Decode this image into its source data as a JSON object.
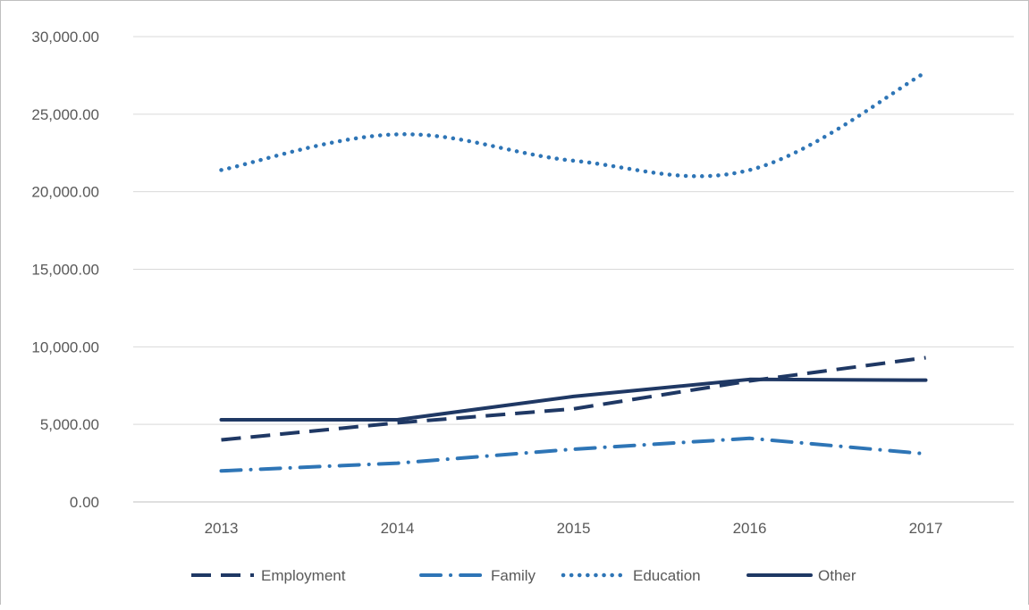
{
  "chart_data": {
    "type": "line",
    "title": "",
    "xlabel": "",
    "ylabel": "",
    "categories": [
      "2013",
      "2014",
      "2015",
      "2016",
      "2017"
    ],
    "ylim": [
      0,
      30000
    ],
    "yticks": [
      0,
      5000,
      10000,
      15000,
      20000,
      25000,
      30000
    ],
    "ytick_labels": [
      "0.00",
      "5,000.00",
      "10,000.00",
      "15,000.00",
      "20,000.00",
      "25,000.00",
      "30,000.00"
    ],
    "grid": true,
    "legend_position": "bottom",
    "series": [
      {
        "name": "Employment",
        "values": [
          4000,
          5100,
          6000,
          7800,
          9300
        ],
        "color": "#1f3864",
        "style": "dashed"
      },
      {
        "name": "Family",
        "values": [
          2000,
          2500,
          3400,
          4100,
          3100
        ],
        "color": "#2e75b6",
        "style": "dash-dot"
      },
      {
        "name": "Education",
        "values": [
          21400,
          23700,
          22000,
          21400,
          27700
        ],
        "color": "#2e75b6",
        "style": "dotted"
      },
      {
        "name": "Other",
        "values": [
          5300,
          5300,
          6800,
          7900,
          7850
        ],
        "color": "#1f3864",
        "style": "solid"
      }
    ]
  }
}
